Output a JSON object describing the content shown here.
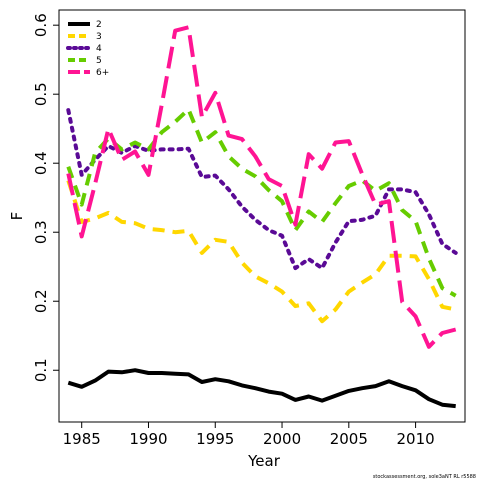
{
  "chart_data": {
    "type": "line",
    "title": "",
    "xlabel": "Year",
    "ylabel": "F",
    "xlim": [
      1983.3,
      2013.7
    ],
    "ylim": [
      0.025,
      0.622
    ],
    "x_ticks": [
      1985,
      1990,
      1995,
      2000,
      2005,
      2010
    ],
    "y_ticks": [
      0.1,
      0.2,
      0.3,
      0.4,
      0.5,
      0.6
    ],
    "legend_position": "top-left",
    "grid": false,
    "x": [
      1984,
      1985,
      1986,
      1987,
      1988,
      1989,
      1990,
      1991,
      1992,
      1993,
      1994,
      1995,
      1996,
      1997,
      1998,
      1999,
      2000,
      2001,
      2002,
      2003,
      2004,
      2005,
      2006,
      2007,
      2008,
      2009,
      2010,
      2011,
      2012,
      2013
    ],
    "series": [
      {
        "name": "2",
        "color": "#000000",
        "dash": "solid",
        "values": [
          0.082,
          0.076,
          0.085,
          0.098,
          0.097,
          0.1,
          0.096,
          0.096,
          0.095,
          0.094,
          0.083,
          0.087,
          0.084,
          0.078,
          0.074,
          0.069,
          0.066,
          0.057,
          0.062,
          0.056,
          0.063,
          0.07,
          0.074,
          0.077,
          0.084,
          0.077,
          0.071,
          0.058,
          0.05,
          0.048
        ]
      },
      {
        "name": "3",
        "color": "#FFD700",
        "dash": "dashed",
        "values": [
          0.375,
          0.315,
          0.32,
          0.328,
          0.315,
          0.313,
          0.305,
          0.303,
          0.3,
          0.302,
          0.27,
          0.289,
          0.286,
          0.256,
          0.236,
          0.226,
          0.214,
          0.193,
          0.197,
          0.171,
          0.188,
          0.214,
          0.227,
          0.239,
          0.266,
          0.266,
          0.265,
          0.232,
          0.192,
          0.188
        ]
      },
      {
        "name": "4",
        "color": "#5A0A96",
        "dash": "dotted",
        "values": [
          0.477,
          0.383,
          0.405,
          0.425,
          0.415,
          0.425,
          0.418,
          0.42,
          0.42,
          0.421,
          0.38,
          0.382,
          0.362,
          0.337,
          0.318,
          0.303,
          0.295,
          0.248,
          0.261,
          0.248,
          0.285,
          0.316,
          0.318,
          0.324,
          0.362,
          0.362,
          0.358,
          0.326,
          0.283,
          0.27
        ]
      },
      {
        "name": "5",
        "color": "#66CC00",
        "dash": "dashed",
        "values": [
          0.395,
          0.34,
          0.415,
          0.436,
          0.42,
          0.43,
          0.42,
          0.445,
          0.46,
          0.478,
          0.43,
          0.445,
          0.41,
          0.392,
          0.381,
          0.361,
          0.345,
          0.303,
          0.33,
          0.315,
          0.342,
          0.367,
          0.375,
          0.36,
          0.371,
          0.332,
          0.316,
          0.262,
          0.219,
          0.208
        ]
      },
      {
        "name": "6+",
        "color": "#FF1493",
        "dash": "longdash",
        "values": [
          0.385,
          0.294,
          0.37,
          0.45,
          0.405,
          0.417,
          0.383,
          0.485,
          0.592,
          0.597,
          0.467,
          0.502,
          0.44,
          0.435,
          0.41,
          0.377,
          0.367,
          0.311,
          0.413,
          0.392,
          0.43,
          0.432,
          0.384,
          0.34,
          0.345,
          0.199,
          0.178,
          0.134,
          0.154,
          0.159
        ]
      }
    ]
  },
  "source_note": "stockassessment.org, sole3aNT RL r5588"
}
